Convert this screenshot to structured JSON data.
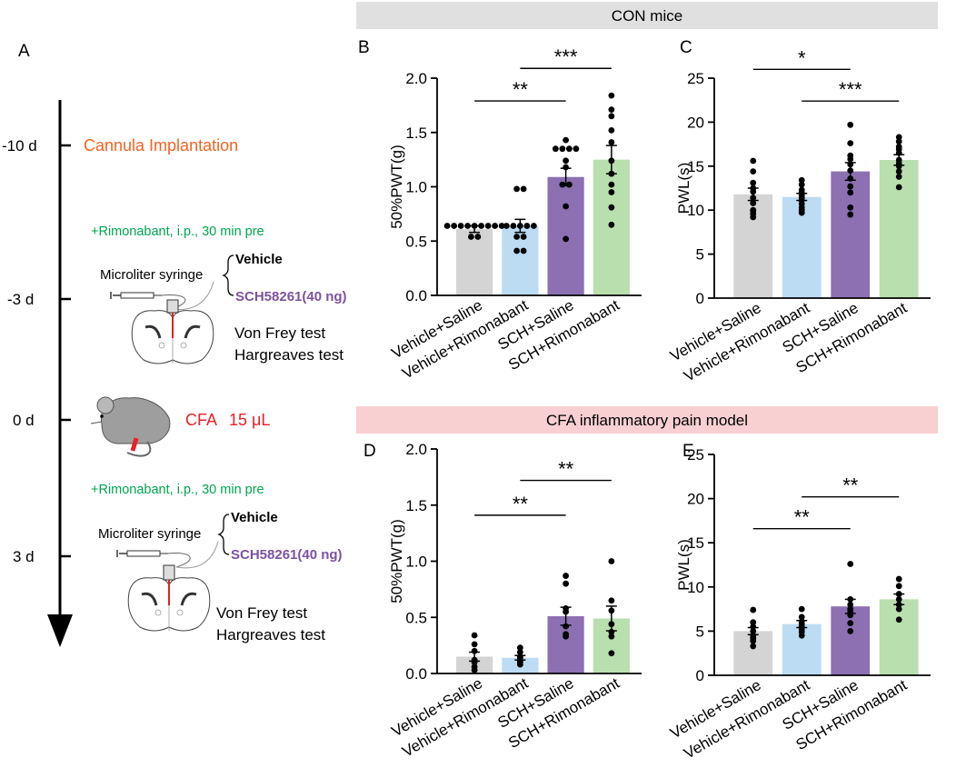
{
  "figure": {
    "colors": {
      "vehicle_saline": "#d4d4d4",
      "vehicle_rimonabant": "#bcdcf4",
      "sch_saline": "#8c70b2",
      "sch_rimonabant": "#b9dfae",
      "orange": "#f26322",
      "red": "#e8212b",
      "green": "#00a651",
      "purple": "#7c52a0",
      "con_banner": "#e0e0e0",
      "cfa_banner": "#f8d0d2"
    },
    "banners": {
      "con": "CON mice",
      "cfa": "CFA inflammatory pain model"
    }
  },
  "timeline": {
    "panel_label": "A",
    "ticks": [
      "-10 d",
      "-3 d",
      "0 d",
      "3 d"
    ],
    "cannula": "Cannula Implantation",
    "rimonabant_note": "+Rimonabant, i.p., 30 min pre",
    "syringe_label": "Microliter syringe",
    "vehicle": "Vehicle",
    "sch": "SCH58261(40 ng)",
    "test1": "Von Frey test",
    "test2": "Hargreaves test",
    "cfa": "CFA",
    "cfa_volume": "15 μL"
  },
  "chart_data": [
    {
      "panel": "B",
      "type": "bar",
      "title": "",
      "xlabel": "",
      "ylabel": "50%PWT(g)",
      "ylim": [
        0,
        2.0
      ],
      "yticks": [
        "0.0",
        "0.5",
        "1.0",
        "1.5",
        "2.0"
      ],
      "categories": [
        "Vehicle+Saline",
        "Vehicle+Rimonabant",
        "SCH+Saline",
        "SCH+Rimonabant"
      ],
      "values": [
        0.61,
        0.64,
        1.09,
        1.25
      ],
      "sem": [
        0.03,
        0.06,
        0.08,
        0.13
      ],
      "points": [
        [
          0.64,
          0.64,
          0.64,
          0.64,
          0.64,
          0.64,
          0.64,
          0.64,
          0.64,
          0.54,
          0.54
        ],
        [
          0.98,
          0.98,
          0.64,
          0.64,
          0.64,
          0.64,
          0.64,
          0.54,
          0.54,
          0.41,
          0.41
        ],
        [
          1.43,
          1.35,
          1.35,
          1.35,
          1.35,
          1.24,
          1.18,
          1.02,
          1.02,
          0.82,
          0.52
        ],
        [
          1.84,
          1.71,
          1.65,
          1.52,
          1.41,
          1.24,
          1.12,
          1.02,
          0.95,
          0.81,
          0.65
        ]
      ],
      "significance": [
        {
          "from": 0,
          "to": 2,
          "label": "**",
          "y": 1.79
        },
        {
          "from": 1,
          "to": 3,
          "label": "***",
          "y": 2.09
        }
      ]
    },
    {
      "panel": "C",
      "type": "bar",
      "title": "",
      "xlabel": "",
      "ylabel": "PWL(s)",
      "ylim": [
        0,
        25
      ],
      "yticks": [
        "0",
        "5",
        "10",
        "15",
        "20",
        "25"
      ],
      "categories": [
        "Vehicle+Saline",
        "Vehicle+Rimonabant",
        "SCH+Saline",
        "SCH+Rimonabant"
      ],
      "values": [
        11.8,
        11.5,
        14.4,
        15.7
      ],
      "sem": [
        0.7,
        0.4,
        1.0,
        0.6
      ],
      "points": [
        [
          15.6,
          14.4,
          13.1,
          12.5,
          12.1,
          11.4,
          10.8,
          10.0,
          9.9,
          9.6,
          9.2
        ],
        [
          13.4,
          12.9,
          12.3,
          12.0,
          11.7,
          11.4,
          11.1,
          10.7,
          10.3,
          10.0,
          9.7
        ],
        [
          19.7,
          17.6,
          16.2,
          15.8,
          15.2,
          14.5,
          13.6,
          12.7,
          12.0,
          10.3,
          9.5
        ],
        [
          18.3,
          17.8,
          17.2,
          16.9,
          16.5,
          15.7,
          15.3,
          15.0,
          14.4,
          13.8,
          12.6
        ]
      ],
      "significance": [
        {
          "from": 0,
          "to": 2,
          "label": "*",
          "y": 26.0
        },
        {
          "from": 1,
          "to": 3,
          "label": "***",
          "y": 22.4
        }
      ]
    },
    {
      "panel": "D",
      "type": "bar",
      "title": "",
      "xlabel": "",
      "ylabel": "50%PWT(g)",
      "ylim": [
        0,
        2.0
      ],
      "yticks": [
        "0.0",
        "0.5",
        "1.0",
        "1.5",
        "2.0"
      ],
      "categories": [
        "Vehicle+Saline",
        "Vehicle+Rimonabant",
        "SCH+Saline",
        "SCH+Rimonabant"
      ],
      "values": [
        0.15,
        0.14,
        0.51,
        0.49
      ],
      "sem": [
        0.04,
        0.02,
        0.08,
        0.11
      ],
      "points": [
        [
          0.34,
          0.26,
          0.2,
          0.12,
          0.1,
          0.06,
          0.03
        ],
        [
          0.23,
          0.19,
          0.15,
          0.14,
          0.11,
          0.1,
          0.08
        ],
        [
          0.87,
          0.8,
          0.58,
          0.55,
          0.42,
          0.35,
          0.33
        ],
        [
          1.0,
          0.65,
          0.56,
          0.44,
          0.37,
          0.33,
          0.18
        ]
      ],
      "significance": [
        {
          "from": 0,
          "to": 2,
          "label": "**",
          "y": 1.41
        },
        {
          "from": 1,
          "to": 3,
          "label": "**",
          "y": 1.72
        }
      ]
    },
    {
      "panel": "E",
      "type": "bar",
      "title": "",
      "xlabel": "",
      "ylabel": "PWL(s)",
      "ylim": [
        0,
        25
      ],
      "yticks": [
        "0",
        "5",
        "10",
        "15",
        "20",
        "25"
      ],
      "categories": [
        "Vehicle+Saline",
        "Vehicle+Rimonabant",
        "SCH+Saline",
        "SCH+Rimonabant"
      ],
      "values": [
        5.0,
        5.8,
        7.8,
        8.6
      ],
      "sem": [
        0.4,
        0.4,
        0.8,
        0.6
      ],
      "points": [
        [
          7.4,
          6.0,
          5.5,
          5.0,
          4.5,
          4.2,
          3.9,
          3.3
        ],
        [
          7.5,
          6.6,
          6.1,
          5.8,
          5.5,
          5.2,
          4.9,
          4.5
        ],
        [
          12.6,
          8.6,
          8.0,
          7.5,
          7.2,
          6.8,
          5.9,
          5.0
        ],
        [
          10.9,
          10.1,
          9.2,
          8.6,
          8.0,
          7.5,
          6.3
        ]
      ],
      "significance": [
        {
          "from": 0,
          "to": 2,
          "label": "**",
          "y": 16.6
        },
        {
          "from": 1,
          "to": 3,
          "label": "**",
          "y": 20.2
        }
      ]
    }
  ]
}
